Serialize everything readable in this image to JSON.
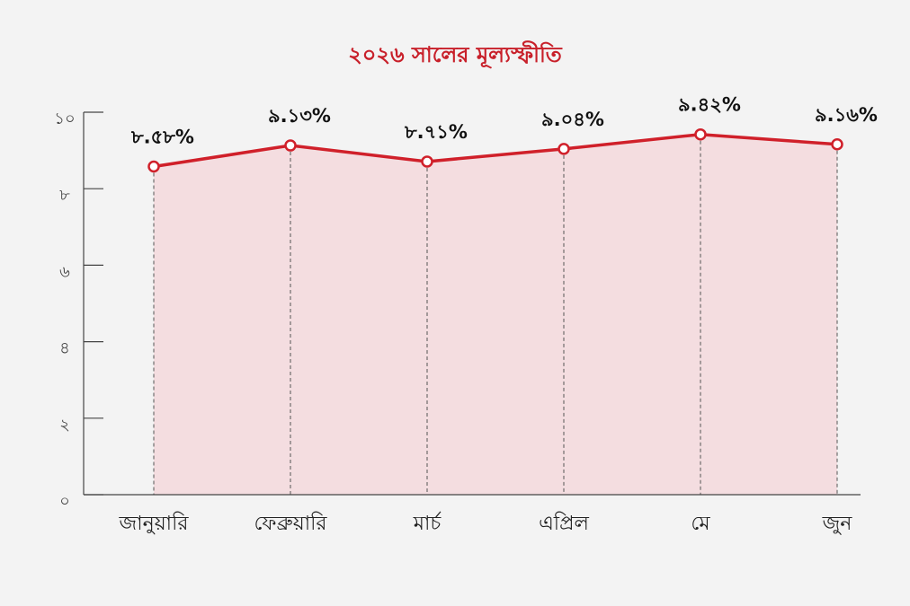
{
  "chart_data": {
    "type": "line",
    "title": "২০২৬ সালের মূল্যস্ফীতি",
    "categories": [
      "জানুয়ারি",
      "ফেব্রুয়ারি",
      "মার্চ",
      "এপ্রিল",
      "মে",
      "জুন"
    ],
    "values": [
      8.58,
      9.13,
      8.71,
      9.04,
      9.42,
      9.16
    ],
    "value_labels": [
      "৮.৫৮%",
      "৯.১৩%",
      "৮.৭১%",
      "৯.০৪%",
      "৯.৪২%",
      "৯.১৬%"
    ],
    "color": "#d0202a",
    "ylim": [
      0,
      10
    ],
    "yticks": [
      {
        "value": 0,
        "label": "০"
      },
      {
        "value": 2,
        "label": "২"
      },
      {
        "value": 4,
        "label": "৪"
      },
      {
        "value": 6,
        "label": "৬"
      },
      {
        "value": 8,
        "label": "৮"
      },
      {
        "value": 10,
        "label": "১০"
      }
    ]
  }
}
